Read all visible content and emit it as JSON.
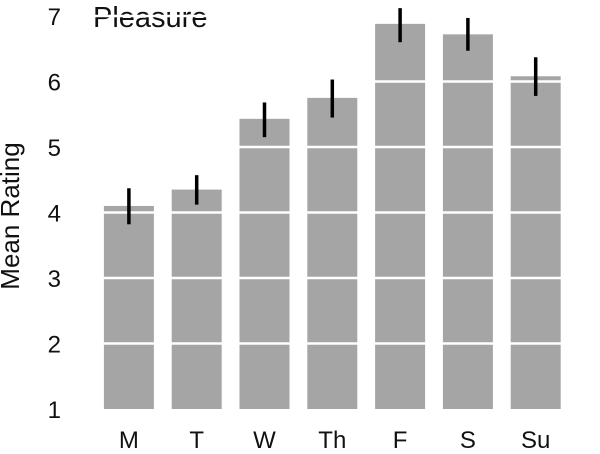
{
  "chart_data": {
    "type": "bar",
    "title": "Pleasure",
    "xlabel": "",
    "ylabel": "Mean Rating",
    "categories": [
      "M",
      "T",
      "W",
      "Th",
      "F",
      "S",
      "Su"
    ],
    "values": [
      4.1,
      4.35,
      5.43,
      5.75,
      6.88,
      6.72,
      6.08
    ],
    "error_low": [
      3.82,
      4.12,
      5.15,
      5.45,
      6.6,
      6.47,
      5.78
    ],
    "error_high": [
      4.37,
      4.57,
      5.68,
      6.03,
      7.12,
      6.97,
      6.37
    ],
    "yticks": [
      1,
      2,
      3,
      4,
      5,
      6,
      7
    ],
    "ylim": [
      1,
      7.15
    ],
    "grid": "white horizontal lines at each y tick, drawn over bars",
    "colors": {
      "bar": "#a5a5a5",
      "error_bar": "#000000",
      "grid": "#ffffff"
    }
  }
}
